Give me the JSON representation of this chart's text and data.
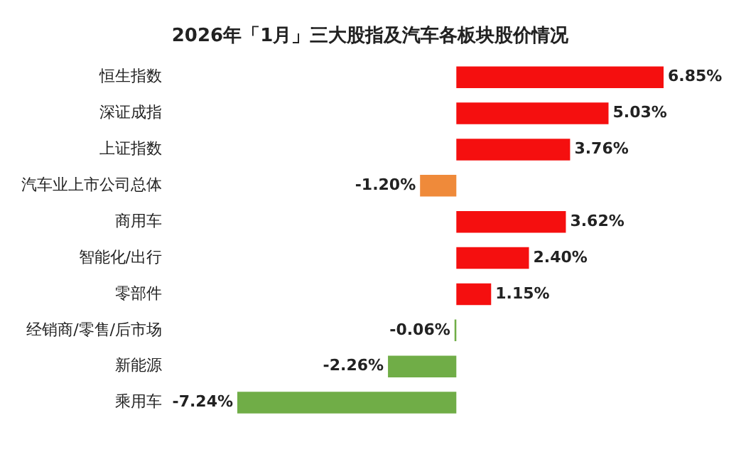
{
  "chart_data": {
    "type": "bar",
    "orientation": "horizontal",
    "title": "2026年「1月」三大股指及汽车各板块股价情况",
    "categories": [
      "恒生指数",
      "深证成指",
      "上证指数",
      "汽车业上市公司总体",
      "商用车",
      "智能化/出行",
      "零部件",
      "经销商/零售/后市场",
      "新能源",
      "乘用车"
    ],
    "values": [
      6.85,
      5.03,
      3.76,
      -1.2,
      3.62,
      2.4,
      1.15,
      -0.06,
      -2.26,
      -7.24
    ],
    "value_labels": [
      "6.85%",
      "5.03%",
      "3.76%",
      "-1.20%",
      "3.62%",
      "2.40%",
      "1.15%",
      "-0.06%",
      "-2.26%",
      "-7.24%"
    ],
    "colors": [
      "#f50f0f",
      "#f50f0f",
      "#f50f0f",
      "#ef8a3a",
      "#f50f0f",
      "#f50f0f",
      "#f50f0f",
      "#70ad47",
      "#70ad47",
      "#70ad47"
    ],
    "grid": false,
    "legend": false
  }
}
